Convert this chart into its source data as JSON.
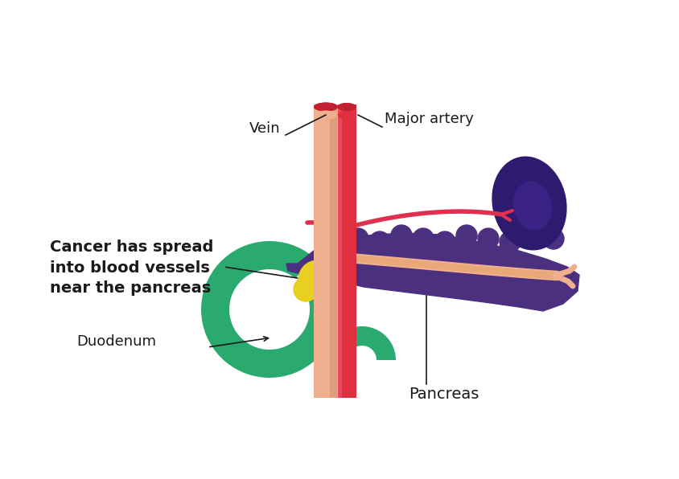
{
  "bg_color": "#ffffff",
  "colors": {
    "duodenum_green": "#2aaa6e",
    "pancreas_purple": "#4b3080",
    "kidney_dark_purple": "#2e1a6e",
    "cancer_yellow": "#e8d020",
    "vein_peach": "#f0b090",
    "vein_peach_dark": "#d09070",
    "artery_red": "#e03040",
    "artery_red_dark": "#c02030",
    "artery_red_light": "#f06070",
    "cancer_spread_red": "#e03050",
    "annotation_line": "#1a1a1a"
  },
  "labels": {
    "vein": "Vein",
    "major_artery": "Major artery",
    "duodenum": "Duodenum",
    "pancreas": "Pancreas",
    "cancer_text": "Cancer has spread\ninto blood vessels\nnear the pancreas"
  },
  "fig_width": 8.45,
  "fig_height": 5.96
}
